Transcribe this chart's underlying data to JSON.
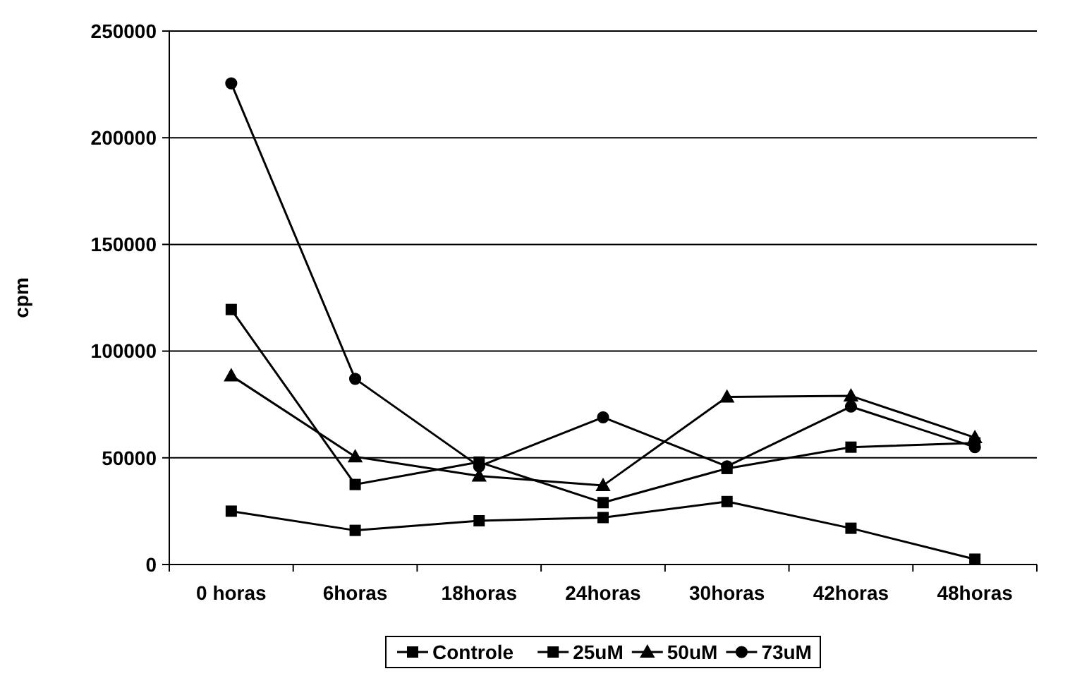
{
  "chart_data": {
    "type": "line",
    "ylabel": "cpm",
    "categories": [
      "0 horas",
      "6horas",
      "18horas",
      "24horas",
      "30horas",
      "42horas",
      "48horas"
    ],
    "series": [
      {
        "name": "Controle",
        "color": "#000000",
        "marker": "square",
        "values": [
          25000,
          16000,
          20500,
          22000,
          29500,
          17000,
          2500
        ]
      },
      {
        "name": "25uM",
        "color": "#000000",
        "marker": "square",
        "values": [
          119500,
          37500,
          48000,
          29000,
          45000,
          55000,
          57000
        ]
      },
      {
        "name": "50uM",
        "color": "#000000",
        "marker": "triangle",
        "values": [
          88500,
          50500,
          41500,
          37000,
          78500,
          79000,
          59500
        ]
      },
      {
        "name": "73uM",
        "color": "#000000",
        "marker": "circle",
        "values": [
          225500,
          87000,
          46000,
          69000,
          46000,
          74000,
          55000
        ]
      }
    ],
    "ylim": [
      0,
      250000
    ],
    "yticks": [
      0,
      50000,
      100000,
      150000,
      200000,
      250000
    ],
    "grid": "y",
    "legend": "bottom",
    "line_style": "solid"
  }
}
